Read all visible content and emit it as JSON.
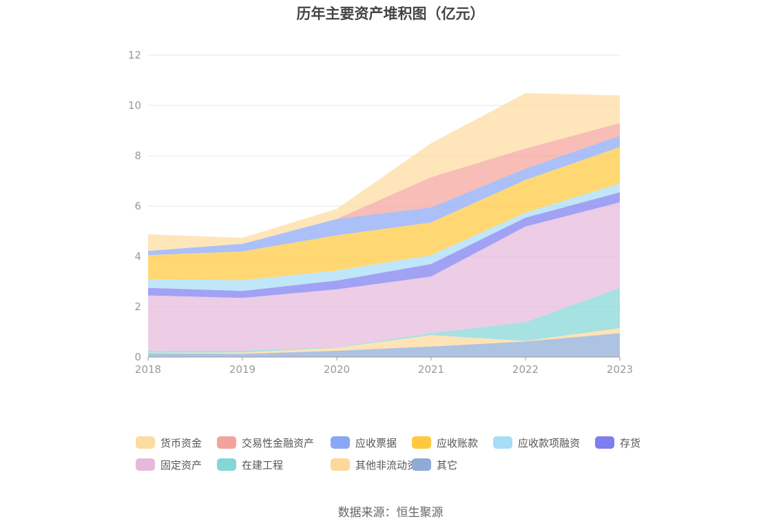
{
  "chart_data": {
    "type": "area",
    "stacked": true,
    "title": "历年主要资产堆积图（亿元）",
    "xlabel": "",
    "ylabel": "",
    "x": [
      "2018",
      "2019",
      "2020",
      "2021",
      "2022",
      "2023"
    ],
    "ylim": [
      0,
      12
    ],
    "yticks": [
      0,
      2,
      4,
      6,
      8,
      10,
      12
    ],
    "grid": true,
    "legend_position": "bottom",
    "series": [
      {
        "name": "其它",
        "color": "#8fabd6",
        "values": [
          0.15,
          0.13,
          0.25,
          0.42,
          0.62,
          0.95
        ]
      },
      {
        "name": "其他非流动资产",
        "color": "#fdd89a",
        "values": [
          0.02,
          0.05,
          0.12,
          0.45,
          0.02,
          0.2
        ]
      },
      {
        "name": "在建工程",
        "color": "#84d7d6",
        "values": [
          0.08,
          0.07,
          0.02,
          0.08,
          0.75,
          1.6
        ]
      },
      {
        "name": "固定资产",
        "color": "#e6b9dc",
        "values": [
          2.2,
          2.1,
          2.3,
          2.25,
          3.8,
          3.4
        ]
      },
      {
        "name": "存货",
        "color": "#7e7ef0",
        "values": [
          0.3,
          0.28,
          0.35,
          0.5,
          0.35,
          0.4
        ]
      },
      {
        "name": "应收款项融资",
        "color": "#a8ddf7",
        "values": [
          0.35,
          0.42,
          0.4,
          0.35,
          0.2,
          0.35
        ]
      },
      {
        "name": "应收账款",
        "color": "#ffc93f",
        "values": [
          0.95,
          1.15,
          1.4,
          1.3,
          1.3,
          1.45
        ]
      },
      {
        "name": "应收票据",
        "color": "#8aa7f5",
        "values": [
          0.17,
          0.3,
          0.65,
          0.6,
          0.45,
          0.45
        ]
      },
      {
        "name": "交易性金融资产",
        "color": "#f4a39a",
        "values": [
          0,
          0,
          0,
          1.2,
          0.8,
          0.5
        ]
      },
      {
        "name": "货币资金",
        "color": "#fddca0",
        "values": [
          0.66,
          0.24,
          0.4,
          1.35,
          2.2,
          1.1
        ]
      }
    ]
  },
  "legend": {
    "rows": [
      [
        {
          "label": "货币资金",
          "color": "#fddca0"
        },
        {
          "label": "交易性金融资产",
          "color": "#f4a39a"
        },
        {
          "label": "应收票据",
          "color": "#8aa7f5"
        },
        {
          "label": "应收账款",
          "color": "#ffc93f"
        },
        {
          "label": "应收款项融资",
          "color": "#a8ddf7"
        },
        {
          "label": "存货",
          "color": "#7e7ef0"
        }
      ],
      [
        {
          "label": "固定资产",
          "color": "#e6b9dc"
        },
        {
          "label": "在建工程",
          "color": "#84d7d6"
        },
        {
          "label": "其他非流动资产",
          "color": "#fdd89a"
        },
        {
          "label": "其它",
          "color": "#8fabd6"
        }
      ]
    ]
  },
  "footer": {
    "source": "数据来源：恒生聚源"
  }
}
